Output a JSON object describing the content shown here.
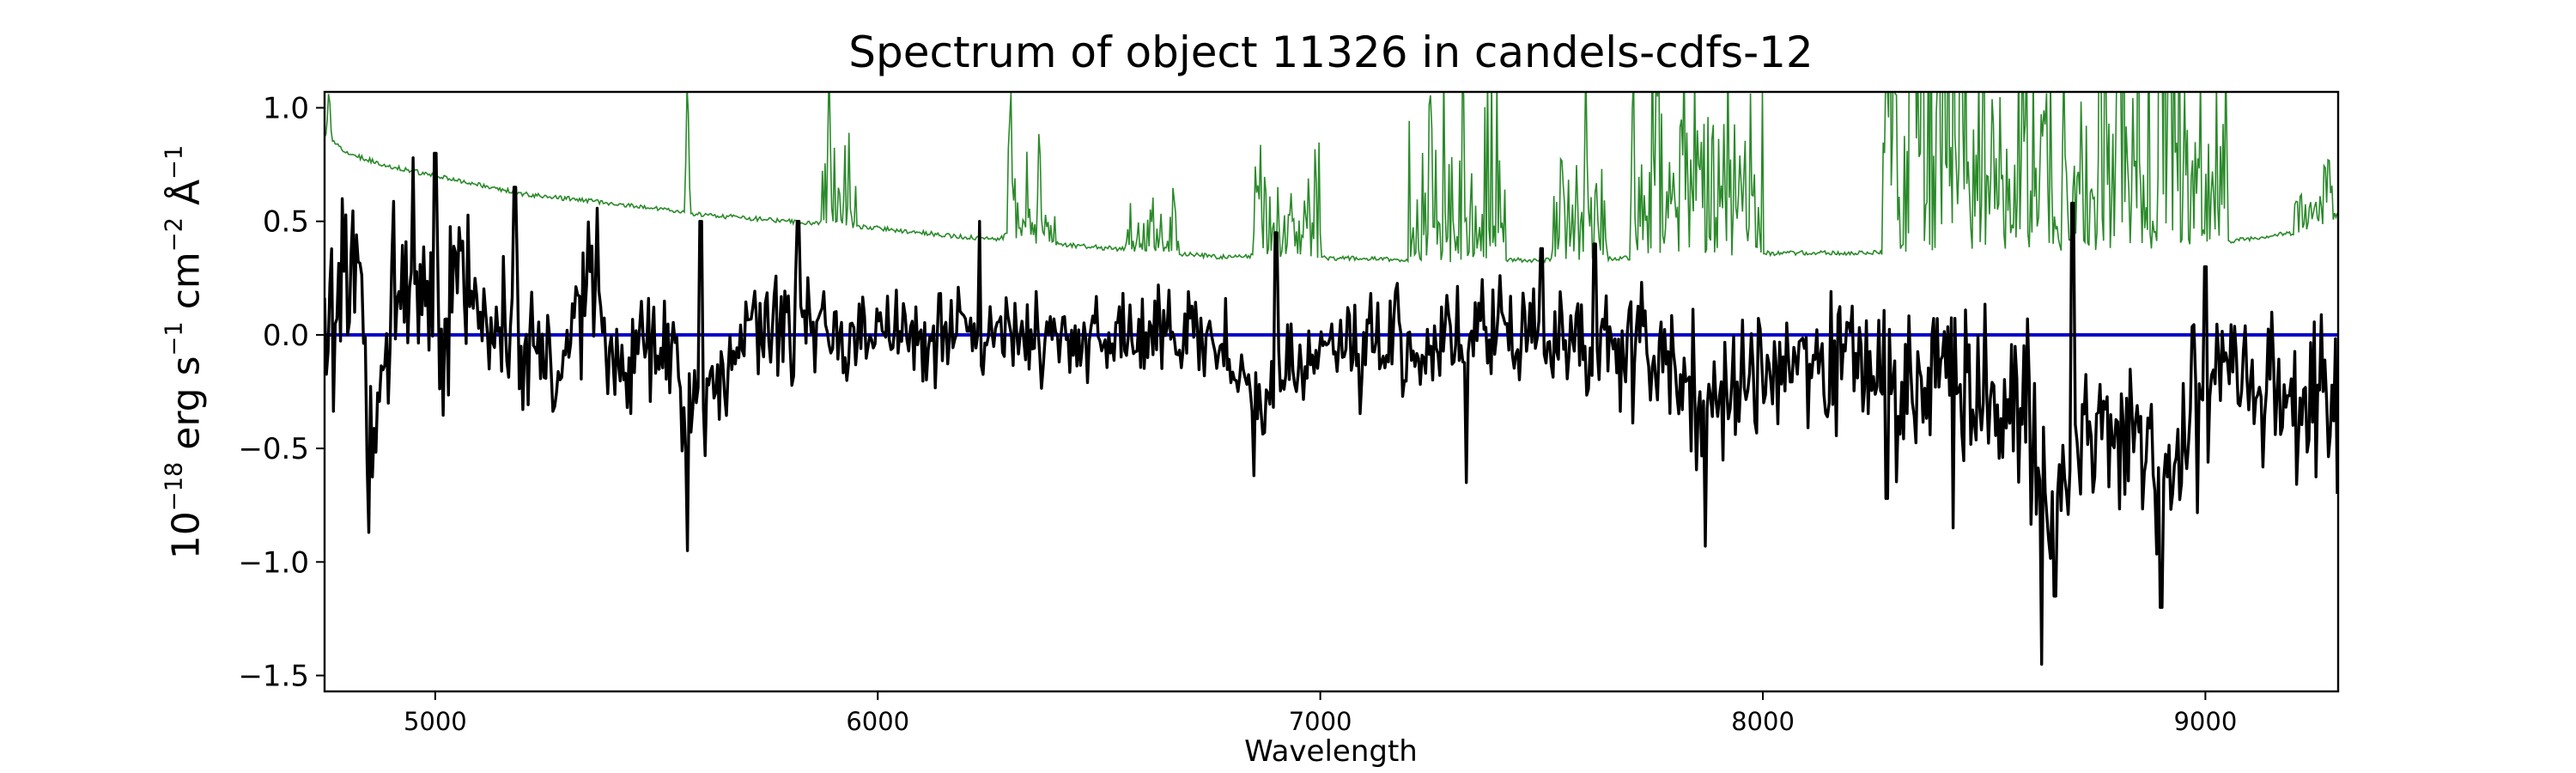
{
  "chart_data": {
    "type": "line",
    "title": "Spectrum of object 11326 in candels-cdfs-12",
    "xlabel": "Wavelength",
    "ylabel_parts": {
      "base": "10",
      "exp": "−18",
      "units_a": " erg s",
      "exp_a": "−1",
      "units_b": " cm",
      "exp_b": "−2",
      "units_c": " Å",
      "exp_c": "−1"
    },
    "xlim": [
      4750,
      9300
    ],
    "ylim": [
      -1.57,
      1.07
    ],
    "xticks": [
      5000,
      6000,
      7000,
      8000,
      9000
    ],
    "xtick_labels": [
      "5000",
      "6000",
      "7000",
      "8000",
      "9000"
    ],
    "yticks": [
      1.0,
      0.5,
      0.0,
      -0.5,
      -1.0,
      -1.5
    ],
    "ytick_labels": [
      "1.0",
      "0.5",
      "0.0",
      "−0.5",
      "−1.0",
      "−1.5"
    ],
    "grid": false,
    "legend": "none",
    "series": [
      {
        "role": "flux",
        "color": "#000000",
        "anchors": [
          [
            4750,
            0.15
          ],
          [
            4800,
            0.1
          ],
          [
            4830,
            0.4
          ],
          [
            4860,
            -0.6
          ],
          [
            4900,
            0.1
          ],
          [
            5000,
            0.2
          ],
          [
            5100,
            0.1
          ],
          [
            5200,
            0.0
          ],
          [
            5300,
            -0.1
          ],
          [
            5350,
            0.3
          ],
          [
            5400,
            -0.2
          ],
          [
            5500,
            0.0
          ],
          [
            5570,
            -0.4
          ],
          [
            5700,
            0.0
          ],
          [
            5800,
            0.05
          ],
          [
            6000,
            0.0
          ],
          [
            6200,
            0.0
          ],
          [
            6400,
            0.0
          ],
          [
            6600,
            0.0
          ],
          [
            6800,
            -0.05
          ],
          [
            6850,
            -0.3
          ],
          [
            7000,
            -0.05
          ],
          [
            7200,
            -0.05
          ],
          [
            7400,
            0.0
          ],
          [
            7600,
            0.0
          ],
          [
            7800,
            -0.15
          ],
          [
            7900,
            -0.35
          ],
          [
            8000,
            -0.1
          ],
          [
            8200,
            -0.1
          ],
          [
            8300,
            -0.25
          ],
          [
            8400,
            -0.1
          ],
          [
            8500,
            -0.2
          ],
          [
            8600,
            -0.35
          ],
          [
            8640,
            -0.85
          ],
          [
            8700,
            -0.4
          ],
          [
            8800,
            -0.4
          ],
          [
            8900,
            -0.6
          ],
          [
            8950,
            -0.5
          ],
          [
            9000,
            -0.3
          ],
          [
            9050,
            0.0
          ],
          [
            9100,
            -0.2
          ],
          [
            9200,
            -0.25
          ],
          [
            9300,
            -0.3
          ]
        ],
        "noise": [
          [
            4750,
            0.3
          ],
          [
            5000,
            0.32
          ],
          [
            5500,
            0.22
          ],
          [
            6000,
            0.15
          ],
          [
            6500,
            0.14
          ],
          [
            6900,
            0.17
          ],
          [
            7500,
            0.2
          ],
          [
            8000,
            0.24
          ],
          [
            8500,
            0.28
          ],
          [
            9000,
            0.32
          ],
          [
            9300,
            0.3
          ]
        ],
        "spikes": [
          [
            4790,
            0.6
          ],
          [
            4850,
            -0.87
          ],
          [
            4950,
            0.78
          ],
          [
            5000,
            0.8
          ],
          [
            5180,
            0.65
          ],
          [
            5570,
            -0.95
          ],
          [
            5600,
            0.5
          ],
          [
            5820,
            0.5
          ],
          [
            6230,
            0.5
          ],
          [
            6850,
            -0.62
          ],
          [
            6900,
            0.45
          ],
          [
            7330,
            -0.65
          ],
          [
            7500,
            0.38
          ],
          [
            7620,
            0.4
          ],
          [
            7870,
            -0.93
          ],
          [
            8280,
            -0.72
          ],
          [
            8430,
            -0.85
          ],
          [
            8630,
            -1.45
          ],
          [
            8660,
            -1.15
          ],
          [
            8700,
            0.58
          ],
          [
            8900,
            -1.2
          ],
          [
            9000,
            0.3
          ],
          [
            9150,
            0.1
          ],
          [
            9300,
            -0.7
          ]
        ]
      },
      {
        "role": "error",
        "color": "#2a8a2a",
        "anchors": [
          [
            4750,
            0.88
          ],
          [
            4800,
            0.8
          ],
          [
            4900,
            0.74
          ],
          [
            5000,
            0.7
          ],
          [
            5200,
            0.62
          ],
          [
            5400,
            0.58
          ],
          [
            5600,
            0.53
          ],
          [
            5800,
            0.5
          ],
          [
            6000,
            0.47
          ],
          [
            6200,
            0.43
          ],
          [
            6400,
            0.4
          ],
          [
            6600,
            0.37
          ],
          [
            6800,
            0.34
          ],
          [
            6850,
            0.35
          ],
          [
            7000,
            0.34
          ],
          [
            7200,
            0.33
          ],
          [
            7400,
            0.33
          ],
          [
            7600,
            0.33
          ],
          [
            7800,
            0.35
          ],
          [
            8000,
            0.36
          ],
          [
            8200,
            0.36
          ],
          [
            8400,
            0.37
          ],
          [
            8600,
            0.38
          ],
          [
            8800,
            0.38
          ],
          [
            9000,
            0.4
          ],
          [
            9200,
            0.45
          ],
          [
            9300,
            0.5
          ]
        ],
        "forest": [
          [
            5870,
            5950,
            0.25
          ],
          [
            6280,
            6400,
            0.2
          ],
          [
            6560,
            6680,
            0.18
          ],
          [
            6850,
            7000,
            0.3
          ],
          [
            7200,
            7420,
            0.45
          ],
          [
            7520,
            7650,
            0.35
          ],
          [
            7700,
            8000,
            0.55
          ],
          [
            8270,
            8450,
            0.9
          ],
          [
            8450,
            8650,
            0.6
          ],
          [
            8650,
            8760,
            0.35
          ],
          [
            8760,
            8950,
            0.9
          ],
          [
            8950,
            9050,
            0.5
          ],
          [
            9200,
            9300,
            0.2
          ]
        ],
        "spikes": [
          [
            4760,
            1.1
          ],
          [
            5570,
            1.2
          ],
          [
            5890,
            1.2
          ],
          [
            6300,
            1.2
          ],
          [
            6365,
            0.98
          ],
          [
            6860,
            0.72
          ],
          [
            7250,
            1.2
          ],
          [
            7600,
            1.2
          ],
          [
            8300,
            1.2
          ],
          [
            8350,
            1.2
          ],
          [
            8450,
            1.2
          ],
          [
            8640,
            1.2
          ],
          [
            8680,
            1.2
          ],
          [
            8800,
            1.2
          ],
          [
            8920,
            1.2
          ]
        ]
      },
      {
        "role": "zero-line",
        "color": "#0000cc",
        "values": [
          [
            4750,
            0.0
          ],
          [
            9300,
            0.0
          ]
        ]
      }
    ]
  }
}
